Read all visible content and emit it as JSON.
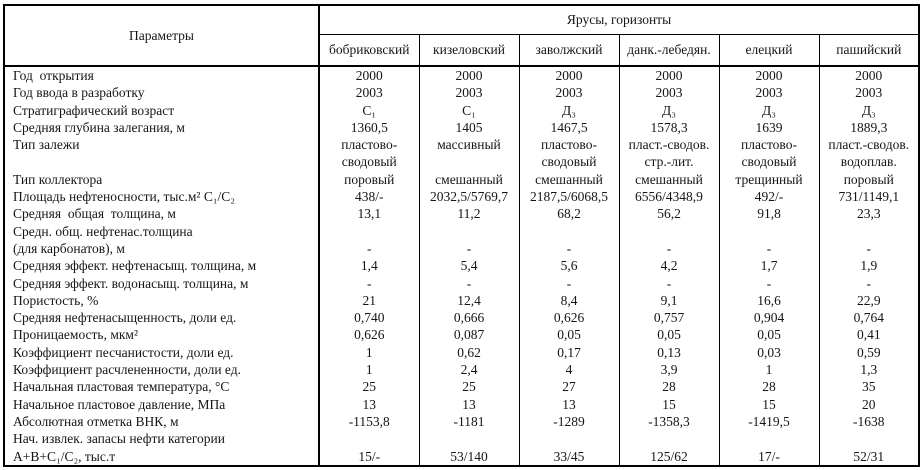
{
  "table": {
    "param_header": "Параметры",
    "group_header": "Ярусы, горизонты",
    "columns": [
      "бобриковский",
      "кизеловский",
      "заволжский",
      "данк.-лебедян.",
      "елецкий",
      "пашийский"
    ],
    "rows": [
      {
        "label": "Год  открытия",
        "values": [
          "2000",
          "2000",
          "2000",
          "2000",
          "2000",
          "2000"
        ]
      },
      {
        "label": "Год ввода в разработку",
        "values": [
          "2003",
          "2003",
          "2003",
          "2003",
          "2003",
          "2003"
        ]
      },
      {
        "label": "Стратиграфический возраст",
        "values": [
          "С₁",
          "С₁",
          "Д₃",
          "Д₃",
          "Д₃",
          "Д₃"
        ]
      },
      {
        "label": "Средняя глубина залегания, м",
        "values": [
          "1360,5",
          "1405",
          "1467,5",
          "1578,3",
          "1639",
          "1889,3"
        ]
      },
      {
        "label": "Тип залежи",
        "values": [
          "пластово-",
          "массивный",
          "пластово-",
          "пласт.-сводов.",
          "пластово-",
          "пласт.-сводов."
        ]
      },
      {
        "label": "",
        "values": [
          "сводовый",
          "",
          "сводовый",
          "стр.-лит.",
          "сводовый",
          "водоплав."
        ]
      },
      {
        "label": "Тип коллектора",
        "values": [
          "поровый",
          "смешанный",
          "смешанный",
          "смешанный",
          "трещинный",
          "поровый"
        ]
      },
      {
        "label": "Площадь нефтеносности, тыс.м² С₁/С₂",
        "values": [
          "438/-",
          "2032,5/5769,7",
          "2187,5/6068,5",
          "6556/4348,9",
          "492/-",
          "731/1149,1"
        ]
      },
      {
        "label": "Средняя  общая  толщина, м",
        "values": [
          "13,1",
          "11,2",
          "68,2",
          "56,2",
          "91,8",
          "23,3"
        ]
      },
      {
        "label": "Средн. общ. нефтенас.толщина",
        "values": [
          "",
          "",
          "",
          "",
          "",
          ""
        ]
      },
      {
        "label": "(для карбонатов), м",
        "values": [
          "-",
          "-",
          "-",
          "-",
          "-",
          "-"
        ]
      },
      {
        "label": "Средняя эффект. нефтенасыщ. толщина, м",
        "values": [
          "1,4",
          "5,4",
          "5,6",
          "4,2",
          "1,7",
          "1,9"
        ]
      },
      {
        "label": "Средняя эффект. водонасыщ. толщина, м",
        "values": [
          "-",
          "-",
          "-",
          "-",
          "-",
          "-"
        ]
      },
      {
        "label": "Пористость, %",
        "values": [
          "21",
          "12,4",
          "8,4",
          "9,1",
          "16,6",
          "22,9"
        ]
      },
      {
        "label": "Средняя нефтенасыщенность, доли ед.",
        "values": [
          "0,740",
          "0,666",
          "0,626",
          "0,757",
          "0,904",
          "0,764"
        ]
      },
      {
        "label": "Проницаемость, мкм²",
        "values": [
          "0,626",
          "0,087",
          "0,05",
          "0,05",
          "0,05",
          "0,41"
        ]
      },
      {
        "label": "Коэффициент песчанистости, доли ед.",
        "values": [
          "1",
          "0,62",
          "0,17",
          "0,13",
          "0,03",
          "0,59"
        ]
      },
      {
        "label": "Коэффициент расчлененности, доли ед.",
        "values": [
          "1",
          "2,4",
          "4",
          "3,9",
          "1",
          "1,3"
        ]
      },
      {
        "label": "Начальная пластовая температура, °С",
        "values": [
          "25",
          "25",
          "27",
          "28",
          "28",
          "35"
        ]
      },
      {
        "label": "Начальное пластовое давление, МПа",
        "values": [
          "13",
          "13",
          "13",
          "15",
          "15",
          "20"
        ]
      },
      {
        "label": "Абсолютная отметка ВНК, м",
        "values": [
          "-1153,8",
          "-1181",
          "-1289",
          "-1358,3",
          "-1419,5",
          "-1638"
        ]
      },
      {
        "label": "Нач. извлек. запасы нефти категории",
        "values": [
          "",
          "",
          "",
          "",
          "",
          ""
        ]
      },
      {
        "label": "А+В+С₁/С₂, тыс.т",
        "values": [
          "15/-",
          "53/140",
          "33/45",
          "125/62",
          "17/-",
          "52/31"
        ]
      }
    ]
  }
}
